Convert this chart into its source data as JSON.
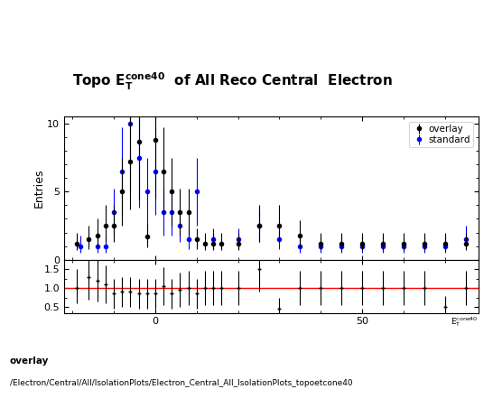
{
  "ylabel_main": "Entries",
  "overlay_label": "overlay",
  "standard_label": "standard",
  "overlay_color": "black",
  "standard_color": "blue",
  "footer_line1": "overlay",
  "footer_line2": "/Electron/Central/All/IsolationPlots/Electron_Central_All_IsolationPlots_topoetcone40",
  "main_ylim": [
    0,
    10.5
  ],
  "main_yticks": [
    0,
    5,
    10
  ],
  "ratio_ylim": [
    0.35,
    1.75
  ],
  "ratio_yticks": [
    0.5,
    1.0,
    1.5
  ],
  "xmin": -22,
  "xmax": 78,
  "overlay_x": [
    -19,
    -16,
    -14,
    -12,
    -10,
    -8,
    -6,
    -4,
    -2,
    0,
    2,
    4,
    6,
    8,
    10,
    12,
    14,
    16,
    20,
    25,
    30,
    35,
    40,
    45,
    50,
    55,
    60,
    65,
    70,
    75
  ],
  "overlay_y": [
    1.2,
    1.5,
    1.8,
    2.5,
    2.5,
    5.0,
    7.2,
    8.7,
    1.7,
    8.8,
    6.5,
    5.0,
    3.5,
    3.5,
    1.5,
    1.2,
    1.2,
    1.2,
    1.2,
    2.5,
    2.5,
    1.8,
    1.2,
    1.2,
    1.2,
    1.2,
    1.2,
    1.2,
    1.2,
    1.2
  ],
  "overlay_yerr_lo": [
    0.5,
    0.7,
    0.9,
    1.2,
    1.2,
    2.5,
    3.5,
    4.3,
    0.8,
    4.3,
    3.2,
    2.5,
    1.7,
    1.7,
    0.7,
    0.5,
    0.5,
    0.5,
    0.5,
    1.2,
    1.2,
    0.9,
    0.5,
    0.5,
    0.5,
    0.5,
    0.5,
    0.5,
    0.5,
    0.5
  ],
  "overlay_yerr_hi": [
    0.8,
    1.0,
    1.2,
    1.5,
    1.5,
    2.5,
    3.5,
    4.3,
    0.9,
    4.3,
    3.2,
    2.5,
    1.7,
    1.7,
    0.8,
    0.8,
    0.8,
    0.8,
    0.8,
    1.5,
    1.5,
    1.1,
    0.8,
    0.8,
    0.8,
    0.8,
    0.8,
    0.8,
    0.8,
    0.8
  ],
  "standard_x": [
    -18,
    -14,
    -12,
    -10,
    -8,
    -6,
    -4,
    -2,
    0,
    2,
    4,
    6,
    8,
    10,
    14,
    20,
    25,
    30,
    35,
    40,
    45,
    50,
    55,
    60,
    65,
    70,
    75
  ],
  "standard_y": [
    1.0,
    1.0,
    1.0,
    3.5,
    6.5,
    10.0,
    7.5,
    5.0,
    6.5,
    3.5,
    3.5,
    2.5,
    1.5,
    5.0,
    1.5,
    1.5,
    2.5,
    1.5,
    1.0,
    1.0,
    1.0,
    1.0,
    1.0,
    1.0,
    1.0,
    1.0,
    1.5
  ],
  "standard_yerr_lo": [
    0.5,
    0.5,
    0.5,
    1.7,
    3.2,
    5.0,
    3.7,
    2.5,
    3.2,
    1.7,
    1.7,
    1.2,
    0.7,
    2.5,
    0.7,
    0.7,
    1.2,
    0.7,
    0.5,
    0.5,
    0.5,
    0.5,
    0.5,
    0.5,
    0.5,
    0.5,
    0.7
  ],
  "standard_yerr_hi": [
    0.8,
    0.8,
    0.8,
    1.7,
    3.2,
    5.0,
    3.7,
    2.5,
    3.2,
    1.7,
    1.7,
    1.2,
    0.8,
    2.5,
    0.8,
    0.8,
    1.2,
    0.8,
    0.8,
    0.8,
    0.8,
    0.8,
    0.8,
    0.8,
    0.8,
    0.8,
    1.0
  ],
  "ratio_x": [
    -19,
    -16,
    -14,
    -12,
    -10,
    -8,
    -6,
    -4,
    -2,
    0,
    2,
    4,
    6,
    8,
    10,
    12,
    14,
    16,
    20,
    25,
    30,
    35,
    40,
    45,
    50,
    55,
    60,
    65,
    70,
    75
  ],
  "ratio_y": [
    1.0,
    1.3,
    1.2,
    1.1,
    0.85,
    0.9,
    0.9,
    0.85,
    0.85,
    0.85,
    1.05,
    0.85,
    0.95,
    1.0,
    0.85,
    1.0,
    1.0,
    1.0,
    1.0,
    1.5,
    0.45,
    1.0,
    1.0,
    1.0,
    1.0,
    1.0,
    1.0,
    1.0,
    0.5,
    1.0
  ],
  "ratio_yerr_lo": [
    0.4,
    0.6,
    0.55,
    0.5,
    0.4,
    0.4,
    0.4,
    0.4,
    0.4,
    0.4,
    0.5,
    0.4,
    0.45,
    0.45,
    0.4,
    0.45,
    0.45,
    0.45,
    0.45,
    0.6,
    0.3,
    0.45,
    0.45,
    0.45,
    0.45,
    0.45,
    0.45,
    0.45,
    0.3,
    0.45
  ],
  "ratio_yerr_hi": [
    0.5,
    0.6,
    0.55,
    0.5,
    0.4,
    0.4,
    0.4,
    0.4,
    0.4,
    0.4,
    0.5,
    0.4,
    0.45,
    0.45,
    0.4,
    0.45,
    0.45,
    0.45,
    0.45,
    0.6,
    0.3,
    0.45,
    0.45,
    0.45,
    0.45,
    0.45,
    0.45,
    0.45,
    0.3,
    0.45
  ]
}
